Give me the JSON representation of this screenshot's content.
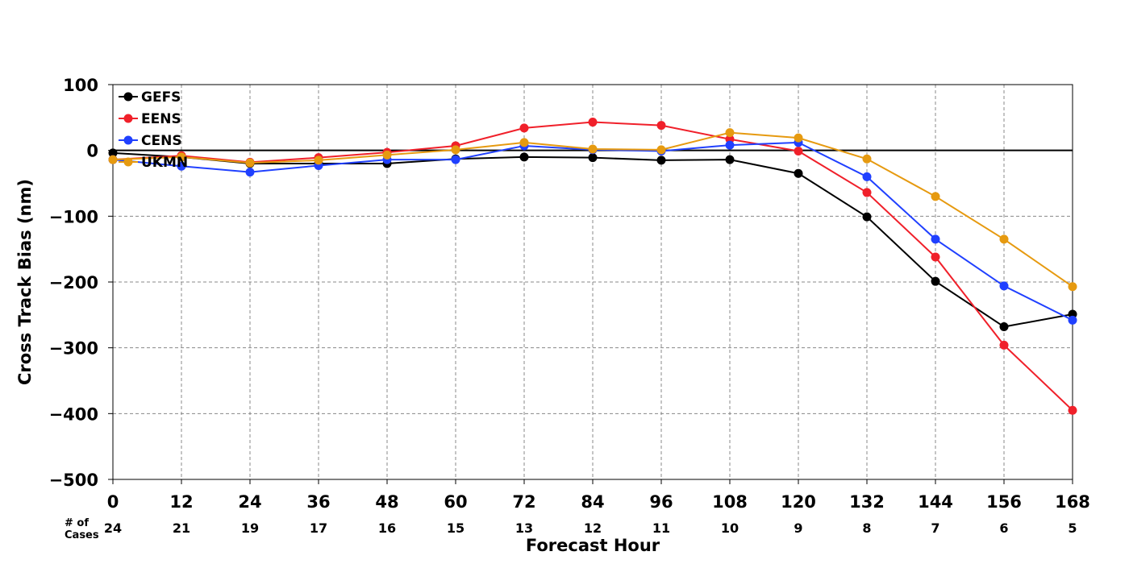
{
  "chart_data": {
    "type": "line",
    "xlabel": "Forecast Hour",
    "ylabel": "Cross Track Bias (nm)",
    "x": [
      0,
      12,
      24,
      36,
      48,
      60,
      72,
      84,
      96,
      108,
      120,
      132,
      144,
      156,
      168
    ],
    "xlim": [
      0,
      168
    ],
    "ylim": [
      -500,
      100
    ],
    "yticks": [
      100,
      0,
      -100,
      -200,
      -300,
      -400,
      -500
    ],
    "ytick_labels": [
      "100",
      "0",
      "−100",
      "−200",
      "−300",
      "−400",
      "−500"
    ],
    "grid": true,
    "zero_line": true,
    "legend_position": "top-left",
    "cases_title": [
      "# of",
      "Cases"
    ],
    "cases": [
      24,
      21,
      19,
      17,
      16,
      15,
      13,
      12,
      11,
      10,
      9,
      8,
      7,
      6,
      5
    ],
    "series": [
      {
        "name": "GEFS",
        "color": "#000000",
        "values": [
          -4,
          -10,
          -20,
          -20,
          -20,
          -13,
          -10,
          -11,
          -15,
          -14,
          -35,
          -101,
          -199,
          -268,
          -249
        ]
      },
      {
        "name": "EENS",
        "color": "#f0202a",
        "values": [
          -14,
          -8,
          -18,
          -11,
          -3,
          7,
          34,
          43,
          38,
          17,
          -1,
          -64,
          -162,
          -296,
          -395
        ]
      },
      {
        "name": "CENS",
        "color": "#2040ff",
        "values": [
          -14,
          -24,
          -33,
          -23,
          -14,
          -14,
          7,
          1,
          -1,
          8,
          12,
          -40,
          -135,
          -206,
          -258
        ]
      },
      {
        "name": "UKMN",
        "color": "#e69a10",
        "values": [
          -14,
          -10,
          -19,
          -15,
          -7,
          1,
          12,
          2,
          1,
          27,
          19,
          -13,
          -70,
          -135,
          -207
        ]
      }
    ]
  }
}
